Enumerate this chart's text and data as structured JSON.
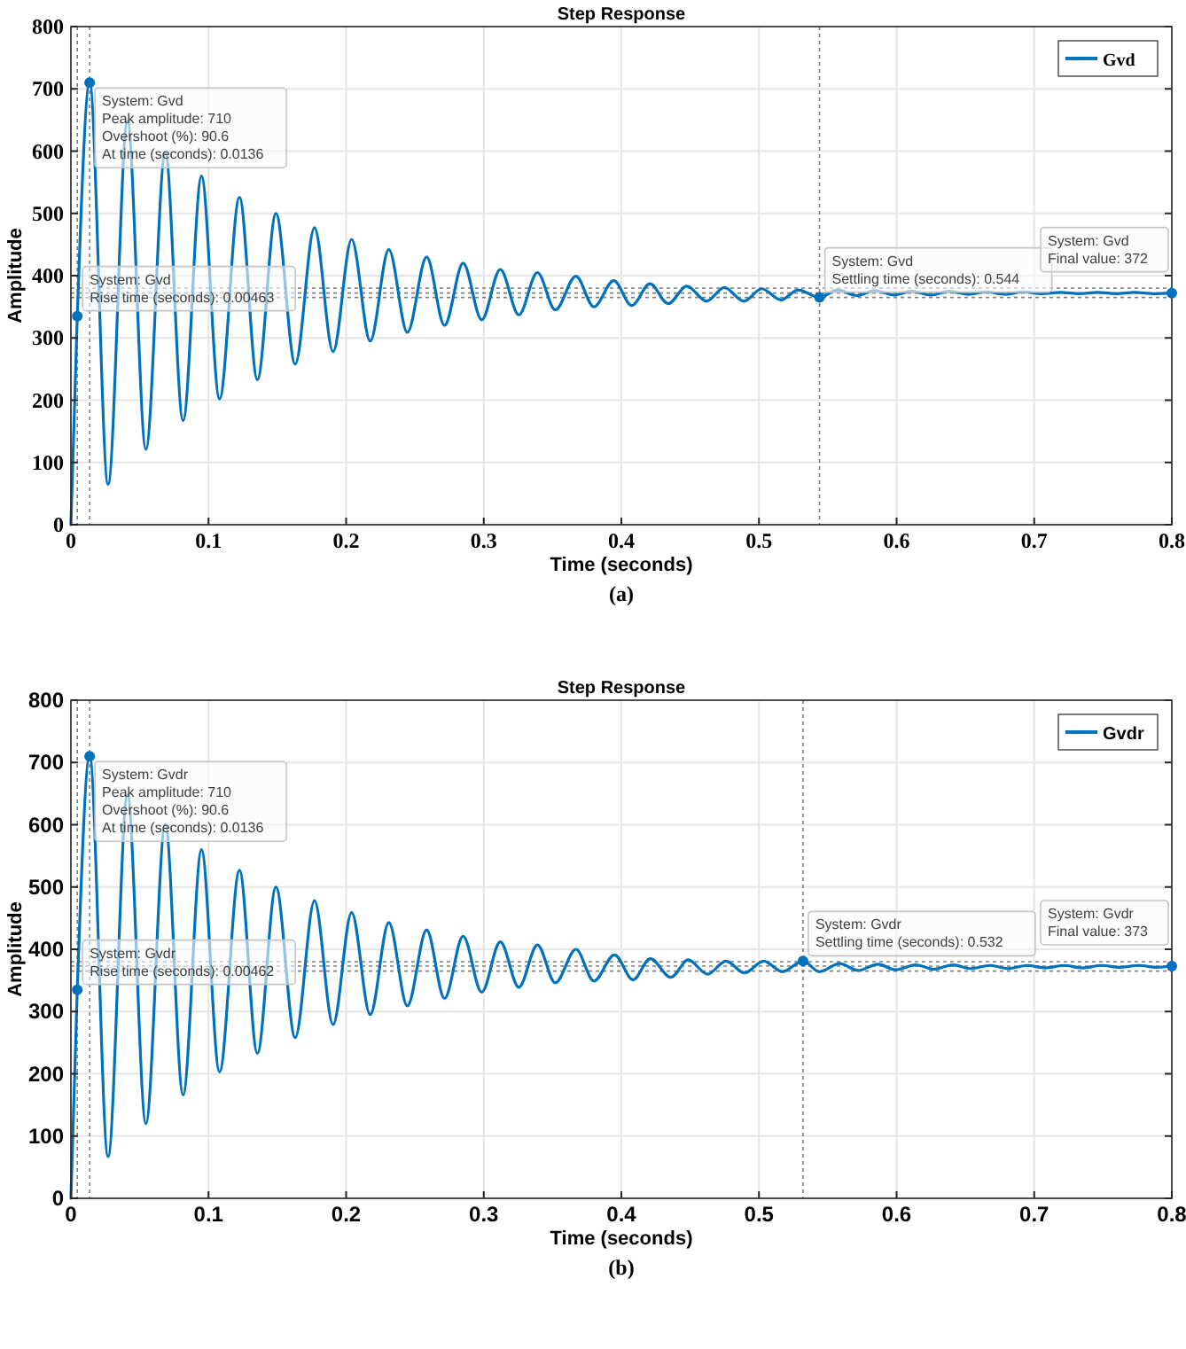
{
  "chart_data": [
    {
      "type": "line",
      "title": "Step Response",
      "xlabel": "Time (seconds)",
      "ylabel": "Amplitude",
      "xlim": [
        0,
        0.8
      ],
      "xticks": [
        0,
        0.1,
        0.2,
        0.3,
        0.4,
        0.5,
        0.6,
        0.7,
        0.8
      ],
      "ylim": [
        0,
        800
      ],
      "yticks": [
        0,
        100,
        200,
        300,
        400,
        500,
        600,
        700,
        800
      ],
      "grid": true,
      "legend": "top right",
      "marker": "none",
      "line_style": "solid",
      "series": [
        {
          "name": "Gvd",
          "color": "#0072bd",
          "x": [
            0,
            0.00463,
            0.0136,
            0.027,
            0.0411,
            0.0545,
            0.0686,
            0.0815,
            0.0949,
            0.108,
            0.1225,
            0.1355,
            0.149,
            0.163,
            0.177,
            0.1905,
            0.204,
            0.2175,
            0.231,
            0.2445,
            0.2585,
            0.2715,
            0.285,
            0.2985,
            0.312,
            0.3255,
            0.339,
            0.352,
            0.367,
            0.38,
            0.3945,
            0.4075,
            0.4208,
            0.434,
            0.4475,
            0.462,
            0.4748,
            0.489,
            0.502,
            0.516,
            0.5284,
            0.544,
            0.557,
            0.571,
            0.584,
            0.598,
            0.611,
            0.625,
            0.638,
            0.652,
            0.665,
            0.679,
            0.692,
            0.706,
            0.719,
            0.733,
            0.746,
            0.76,
            0.773,
            0.787,
            0.8
          ],
          "values": [
            0,
            335,
            710,
            65,
            648,
            121,
            598,
            167,
            560,
            202,
            526,
            233,
            500,
            258,
            477,
            278,
            458,
            295,
            442,
            309,
            430,
            320,
            420,
            329,
            410,
            337,
            405,
            345,
            399,
            350,
            392,
            352,
            387,
            355,
            383,
            359,
            381,
            359,
            379,
            361,
            377,
            365,
            377,
            368,
            376,
            369,
            375,
            369,
            375,
            370,
            374,
            370,
            374,
            371,
            373,
            371,
            373,
            371,
            373,
            371,
            372
          ]
        }
      ],
      "ref_lines": [
        {
          "axis": "y",
          "value": 365,
          "color": "#808080",
          "line_style": "dotted"
        },
        {
          "axis": "y",
          "value": 372,
          "color": "#808080",
          "line_style": "dotted"
        },
        {
          "axis": "y",
          "value": 380,
          "color": "#808080",
          "line_style": "dotted"
        },
        {
          "axis": "x",
          "value": 0.00463,
          "color": "#808080",
          "line_style": "dotted"
        },
        {
          "axis": "x",
          "value": 0.0136,
          "color": "#808080",
          "line_style": "dotted"
        },
        {
          "axis": "x",
          "value": 0.544,
          "color": "#808080",
          "line_style": "dotted"
        }
      ],
      "annotations": [
        {
          "text": "System: Gvd\nPeak amplitude: 710\nOvershoot (%): 90.6\nAt time (seconds): 0.0136",
          "x": 0.0136,
          "y": 710
        },
        {
          "text": "System: Gvd\nRise time (seconds): 0.00463",
          "x": 0.00463,
          "y": 335
        },
        {
          "text": "System: Gvd\nSettling time (seconds): 0.544",
          "x": 0.544,
          "y": 365
        },
        {
          "text": "System: Gvd\nFinal value: 372",
          "x": 0.8,
          "y": 372
        },
        "(a)"
      ]
    },
    {
      "type": "line",
      "title": "Step Response",
      "xlabel": "Time (seconds)",
      "ylabel": "Amplitude",
      "xlim": [
        0,
        0.8
      ],
      "xticks": [
        0,
        0.1,
        0.2,
        0.3,
        0.4,
        0.5,
        0.6,
        0.7,
        0.8
      ],
      "ylim": [
        0,
        800
      ],
      "yticks": [
        0,
        100,
        200,
        300,
        400,
        500,
        600,
        700,
        800
      ],
      "grid": true,
      "legend": "top right",
      "marker": "none",
      "line_style": "solid",
      "series": [
        {
          "name": "Gvdr",
          "color": "#0072bd",
          "x": [
            0,
            0.00462,
            0.0136,
            0.027,
            0.0411,
            0.0545,
            0.0686,
            0.0815,
            0.0949,
            0.108,
            0.1225,
            0.1355,
            0.149,
            0.163,
            0.177,
            0.1905,
            0.204,
            0.2175,
            0.231,
            0.2445,
            0.2585,
            0.2715,
            0.285,
            0.2985,
            0.312,
            0.3255,
            0.339,
            0.352,
            0.367,
            0.38,
            0.395,
            0.4085,
            0.421,
            0.436,
            0.4486,
            0.4626,
            0.476,
            0.4895,
            0.5034,
            0.517,
            0.532,
            0.544,
            0.5586,
            0.572,
            0.5866,
            0.599,
            0.614,
            0.627,
            0.641,
            0.654,
            0.668,
            0.681,
            0.695,
            0.708,
            0.722,
            0.735,
            0.749,
            0.762,
            0.776,
            0.789,
            0.8
          ],
          "values": [
            0,
            335,
            710,
            67,
            648,
            120,
            601,
            166,
            560,
            203,
            527,
            233,
            500,
            258,
            478,
            279,
            459,
            295,
            443,
            309,
            431,
            321,
            421,
            331,
            412,
            339,
            407,
            346,
            400,
            349,
            391,
            351,
            385,
            355,
            383,
            360,
            381,
            362,
            381,
            364,
            381,
            364,
            377,
            366,
            376,
            367,
            375,
            368,
            375,
            369,
            374,
            369,
            374,
            370,
            374,
            370,
            374,
            371,
            374,
            371,
            373
          ]
        }
      ],
      "ref_lines": [
        {
          "axis": "y",
          "value": 365,
          "color": "#808080",
          "line_style": "dotted"
        },
        {
          "axis": "y",
          "value": 373,
          "color": "#808080",
          "line_style": "dotted"
        },
        {
          "axis": "y",
          "value": 380,
          "color": "#808080",
          "line_style": "dotted"
        },
        {
          "axis": "x",
          "value": 0.00462,
          "color": "#808080",
          "line_style": "dotted"
        },
        {
          "axis": "x",
          "value": 0.0136,
          "color": "#808080",
          "line_style": "dotted"
        },
        {
          "axis": "x",
          "value": 0.532,
          "color": "#808080",
          "line_style": "dotted"
        }
      ],
      "annotations": [
        {
          "text": "System: Gvdr\nPeak amplitude: 710\nOvershoot (%): 90.6\nAt time (seconds): 0.0136",
          "x": 0.0136,
          "y": 710
        },
        {
          "text": "System: Gvdr\nRise time (seconds): 0.00462",
          "x": 0.00462,
          "y": 335
        },
        {
          "text": "System: Gvdr\nSettling time (seconds): 0.532",
          "x": 0.532,
          "y": 381
        },
        {
          "text": "System: Gvdr\nFinal value: 373",
          "x": 0.8,
          "y": 373
        },
        "(b)"
      ]
    }
  ]
}
